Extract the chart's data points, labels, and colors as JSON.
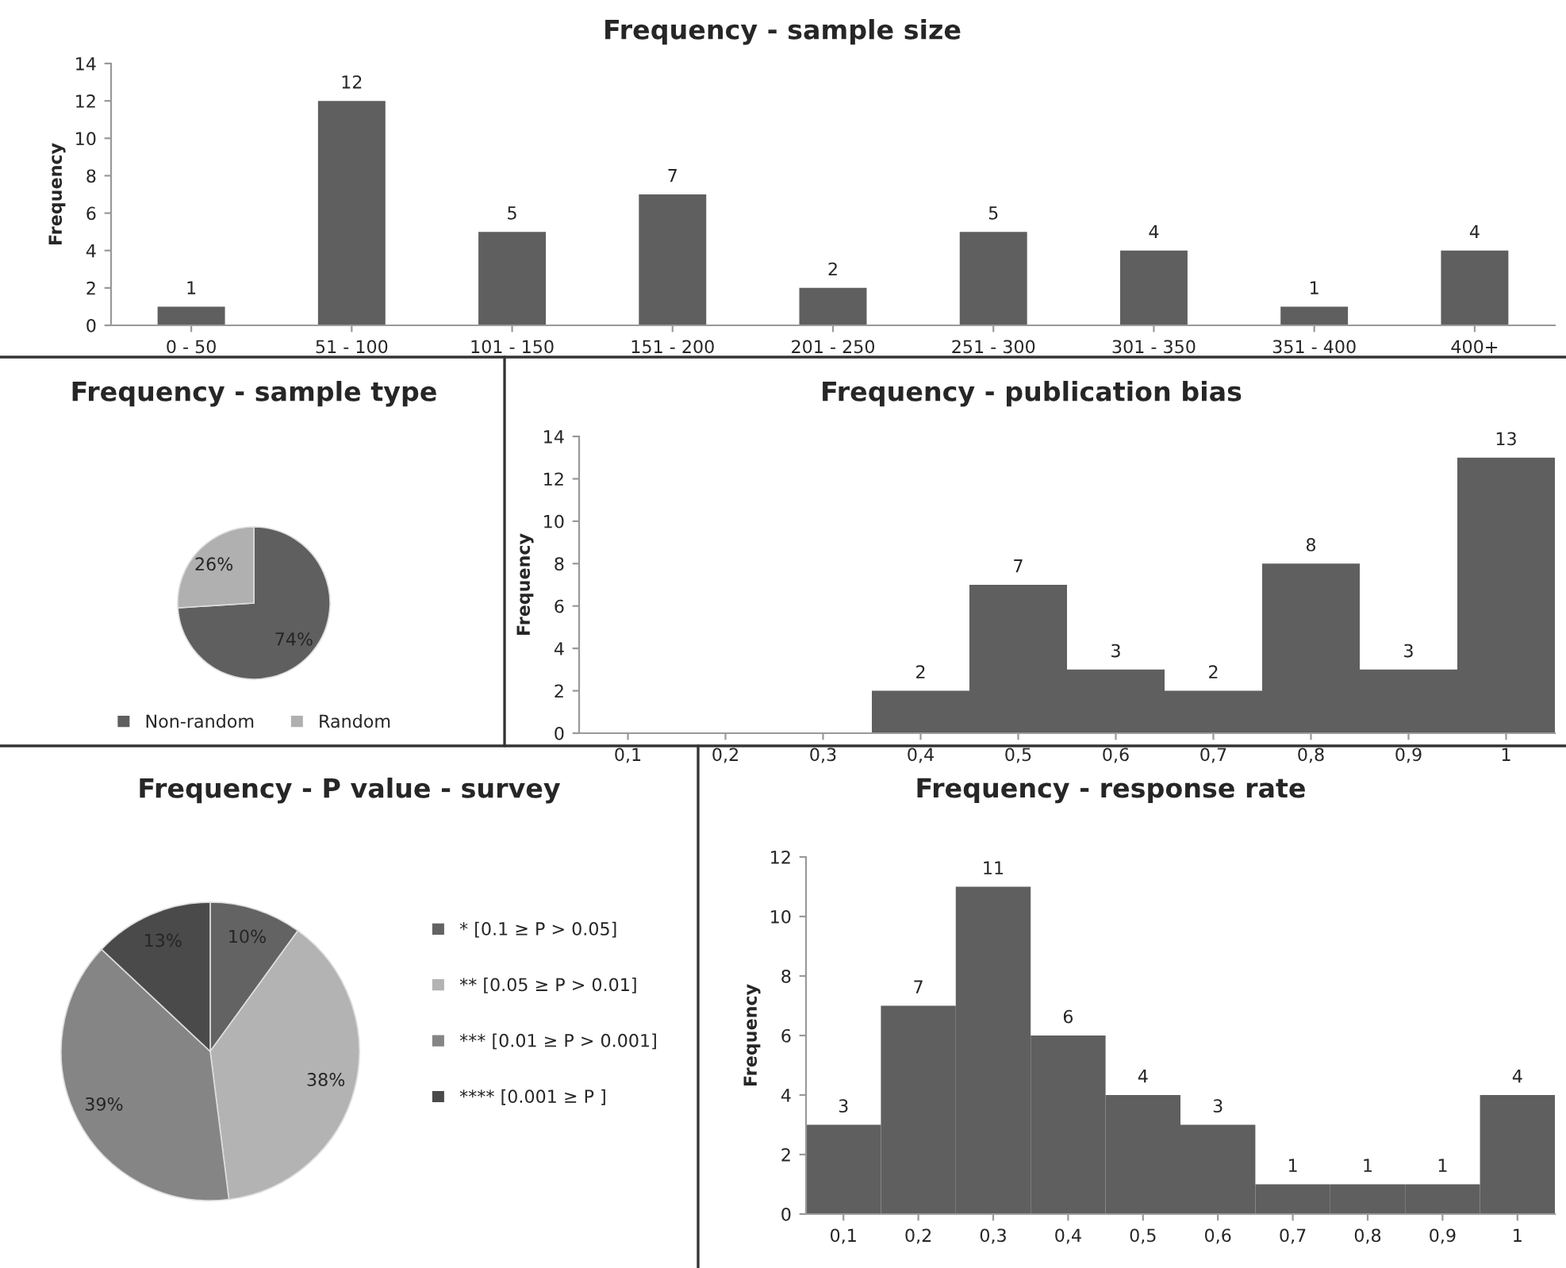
{
  "chart_data": [
    {
      "type": "bar",
      "title": "Frequency - sample size",
      "ylabel": "Frequency",
      "categories": [
        "0 - 50",
        "51 - 100",
        "101 - 150",
        "151 - 200",
        "201 - 250",
        "251 - 300",
        "301 - 350",
        "351 - 400",
        "400+"
      ],
      "values": [
        1,
        12,
        5,
        7,
        2,
        5,
        4,
        1,
        4
      ],
      "color": "#5f5f5f",
      "ylim": [
        0,
        14
      ],
      "yticks": [
        0,
        2,
        4,
        6,
        8,
        10,
        12,
        14
      ],
      "data_labels": true,
      "grid": false
    },
    {
      "type": "pie",
      "title": "Frequency - sample type",
      "categories": [
        "Non-random",
        "Random"
      ],
      "values": [
        74,
        26
      ],
      "colors": [
        "#5f5f5f",
        "#b0b0b0"
      ],
      "value_labels": [
        "74%",
        "26%"
      ],
      "legend": "bottom"
    },
    {
      "type": "bar",
      "title": "Frequency - publication bias",
      "ylabel": "Frequency",
      "categories": [
        "0,1",
        "0,2",
        "0,3",
        "0,4",
        "0,5",
        "0,6",
        "0,7",
        "0,8",
        "0,9",
        "1"
      ],
      "values": [
        0,
        0,
        0,
        2,
        7,
        3,
        2,
        8,
        3,
        13
      ],
      "value_labels": [
        null,
        null,
        null,
        "2",
        "7",
        "3",
        "2",
        "8",
        "3",
        "13"
      ],
      "color": "#5f5f5f",
      "ylim": [
        0,
        14
      ],
      "yticks": [
        0,
        2,
        4,
        6,
        8,
        10,
        12,
        14
      ],
      "grid": false
    },
    {
      "type": "pie",
      "title": "Frequency - P value - survey",
      "categories": [
        "* [0.1 ≥ P > 0.05]",
        "** [0.05 ≥ P > 0.01]",
        "*** [0.01 ≥ P > 0.001]",
        "**** [0.001 ≥ P ]"
      ],
      "values": [
        10,
        38,
        39,
        13
      ],
      "colors": [
        "#636363",
        "#b3b3b3",
        "#858585",
        "#4a4a4a"
      ],
      "value_labels": [
        "10%",
        "38%",
        "39%",
        "13%"
      ],
      "legend": "right"
    },
    {
      "type": "bar",
      "title": "Frequency - response rate",
      "ylabel": "Frequency",
      "categories": [
        "0,1",
        "0,2",
        "0,3",
        "0,4",
        "0,5",
        "0,6",
        "0,7",
        "0,8",
        "0,9",
        "1"
      ],
      "values": [
        3,
        7,
        11,
        6,
        4,
        3,
        1,
        1,
        1,
        4
      ],
      "color": "#5f5f5f",
      "ylim": [
        0,
        12
      ],
      "yticks": [
        0,
        2,
        4,
        6,
        8,
        10,
        12
      ],
      "data_labels": true,
      "grid": false
    }
  ]
}
